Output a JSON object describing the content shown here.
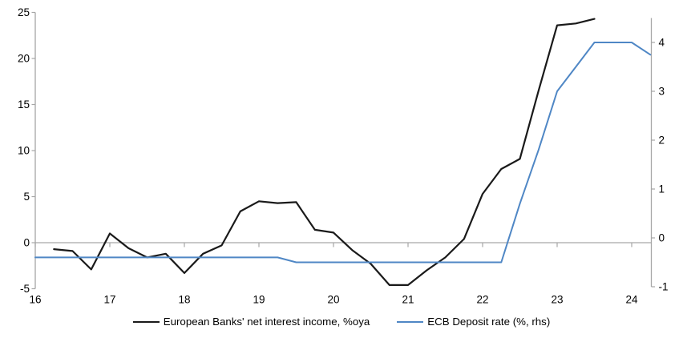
{
  "chart_data": {
    "type": "line",
    "title": "",
    "x_axis": {
      "tick_labels": [
        "16",
        "17",
        "18",
        "19",
        "20",
        "21",
        "22",
        "23",
        "24"
      ],
      "tick_values": [
        16,
        17,
        18,
        19,
        20,
        21,
        22,
        23,
        24
      ],
      "range": [
        16,
        24.27
      ],
      "grid": false
    },
    "left_axis": {
      "tick_labels": [
        "25",
        "20",
        "15",
        "10",
        "5",
        "0",
        "-5"
      ],
      "tick_values": [
        25,
        20,
        15,
        10,
        5,
        0,
        -5
      ],
      "range": [
        -5,
        25
      ],
      "zero_line": true
    },
    "right_axis": {
      "tick_labels": [
        "4",
        "3",
        "2",
        "1",
        "0",
        "-1"
      ],
      "tick_values": [
        4,
        3,
        2,
        1,
        0,
        -1
      ],
      "range": [
        -1,
        4.5
      ]
    },
    "series": [
      {
        "name": "European Banks' net interest income, %oya",
        "axis": "left",
        "color": "#1a1a1a",
        "stroke_width": 2.2,
        "x": [
          16.25,
          16.5,
          16.75,
          17.0,
          17.25,
          17.5,
          17.75,
          18.0,
          18.25,
          18.5,
          18.75,
          19.0,
          19.25,
          19.5,
          19.75,
          20.0,
          20.25,
          20.5,
          20.75,
          21.0,
          21.25,
          21.5,
          21.75,
          22.0,
          22.25,
          22.5,
          22.75,
          23.0,
          23.25,
          23.5
        ],
        "values": [
          -0.7,
          -0.9,
          -2.9,
          1.0,
          -0.6,
          -1.6,
          -1.2,
          -3.3,
          -1.2,
          -0.3,
          3.4,
          4.5,
          4.3,
          4.4,
          1.4,
          1.1,
          -0.8,
          -2.3,
          -4.6,
          -4.6,
          -3.0,
          -1.6,
          0.4,
          5.3,
          8.0,
          9.1,
          16.5,
          23.6,
          23.8,
          24.3
        ]
      },
      {
        "name": "ECB Deposit rate (%, rhs)",
        "axis": "right",
        "color": "#4f87c5",
        "stroke_width": 2,
        "x": [
          16.0,
          16.25,
          16.5,
          16.75,
          17.0,
          17.25,
          17.5,
          17.75,
          18.0,
          18.25,
          18.5,
          18.75,
          19.0,
          19.25,
          19.5,
          19.75,
          20.0,
          20.25,
          20.5,
          20.75,
          21.0,
          21.25,
          21.5,
          21.75,
          22.0,
          22.25,
          22.5,
          22.75,
          23.0,
          23.25,
          23.5,
          23.75,
          24.0,
          24.25
        ],
        "values": [
          -0.4,
          -0.4,
          -0.4,
          -0.4,
          -0.4,
          -0.4,
          -0.4,
          -0.4,
          -0.4,
          -0.4,
          -0.4,
          -0.4,
          -0.4,
          -0.4,
          -0.5,
          -0.5,
          -0.5,
          -0.5,
          -0.5,
          -0.5,
          -0.5,
          -0.5,
          -0.5,
          -0.5,
          -0.5,
          -0.5,
          0.7,
          1.8,
          3.0,
          3.5,
          4.0,
          4.0,
          4.0,
          3.75
        ]
      }
    ],
    "legend": {
      "position": "bottom"
    }
  },
  "colors": {
    "axis": "#a6a6a6",
    "text": "#000000",
    "background": "#ffffff"
  }
}
